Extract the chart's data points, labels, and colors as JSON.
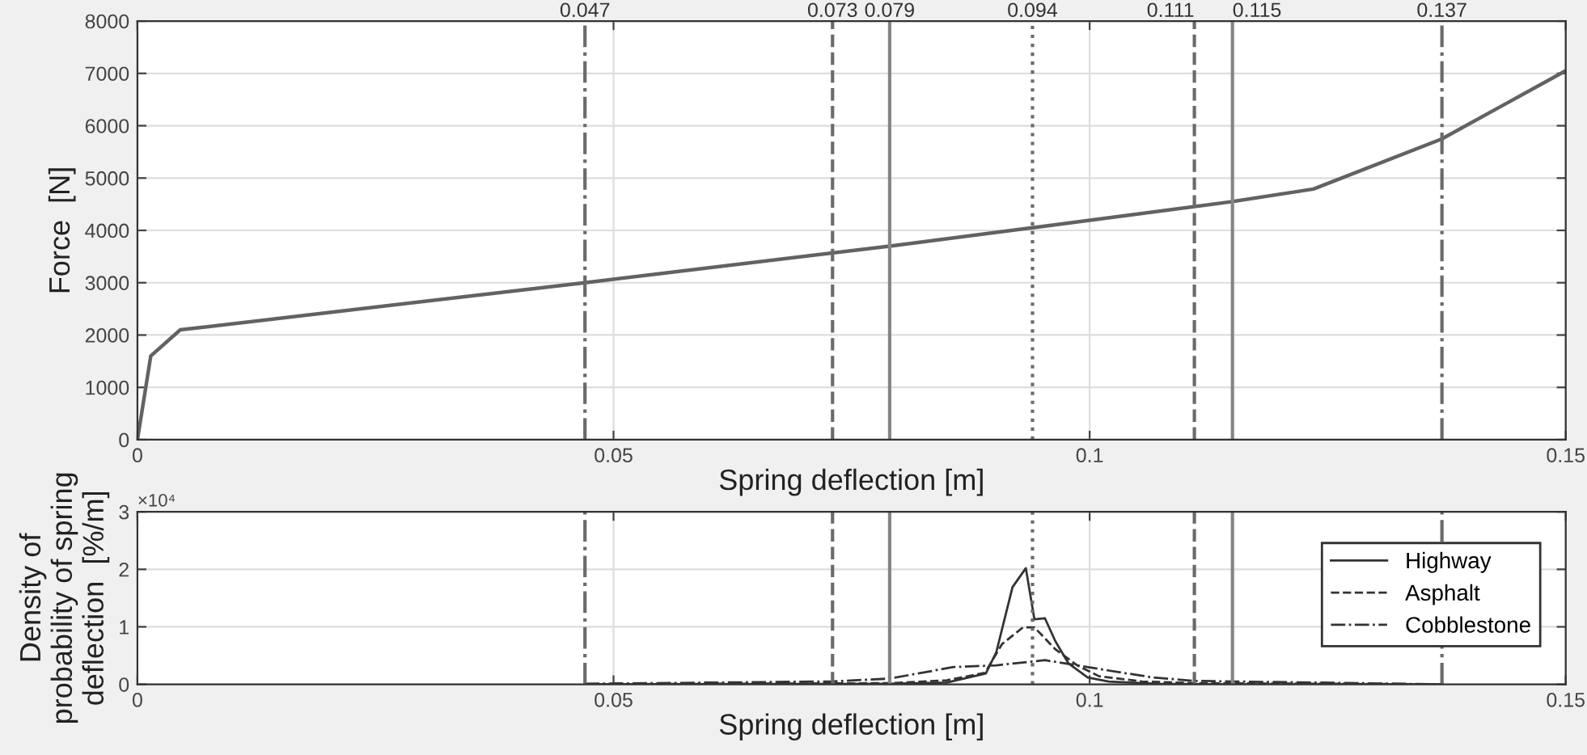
{
  "chart_data": [
    {
      "type": "line",
      "xlabel": "Spring deflection [m]",
      "ylabel": "Force  [N]",
      "x": [
        0,
        0.0014,
        0.0045,
        0.047,
        0.079,
        0.094,
        0.115,
        0.1235,
        0.137,
        0.143,
        0.15
      ],
      "series": [
        {
          "color": "#626262",
          "values": [
            0,
            1600,
            2100,
            3000,
            3700,
            4050,
            4550,
            4790,
            5750,
            6350,
            7050
          ]
        }
      ],
      "xlim": [
        0,
        0.15
      ],
      "xticks": [
        0,
        0.05,
        0.1,
        0.15
      ],
      "ylim": [
        0,
        8000
      ],
      "yticks": [
        0,
        1000,
        2000,
        3000,
        4000,
        5000,
        6000,
        7000,
        8000
      ],
      "grid": true,
      "legend": false,
      "ref_lines": [
        {
          "axis": "x",
          "value": 0.047,
          "label": "0.047",
          "color": "#6a6a6a",
          "line_style": "dashdot"
        },
        {
          "axis": "x",
          "value": 0.073,
          "label": "0.073",
          "color": "#6a6a6a",
          "line_style": "dashed"
        },
        {
          "axis": "x",
          "value": 0.079,
          "label": "0.079",
          "color": "#858585",
          "line_style": "solid"
        },
        {
          "axis": "x",
          "value": 0.094,
          "label": "0.094",
          "color": "#6a6a6a",
          "line_style": "dotted"
        },
        {
          "axis": "x",
          "value": 0.111,
          "label": "0.111",
          "color": "#6a6a6a",
          "line_style": "dashed"
        },
        {
          "axis": "x",
          "value": 0.115,
          "label": "0.115",
          "color": "#858585",
          "line_style": "solid"
        },
        {
          "axis": "x",
          "value": 0.137,
          "label": "0.137",
          "color": "#6a6a6a",
          "line_style": "dashdot"
        }
      ]
    },
    {
      "type": "line",
      "xlabel": "Spring deflection [m]",
      "ylabel": "Density of\nprobability of spring\ndeflection  [%/m]",
      "annotations": [
        "×10⁴"
      ],
      "series": [
        {
          "name": "Highway",
          "color": "#333333",
          "line_style": "solid",
          "x": [
            0.047,
            0.079,
            0.085,
            0.0891,
            0.0902,
            0.0919,
            0.0933,
            0.0942,
            0.0953,
            0.0964,
            0.0978,
            0.0998,
            0.102,
            0.107,
            0.115,
            0.137
          ],
          "values": [
            0,
            0.01,
            0.03,
            0.19,
            0.56,
            1.69,
            2.02,
            1.13,
            1.15,
            0.75,
            0.36,
            0.12,
            0.05,
            0.01,
            0,
            0
          ]
        },
        {
          "name": "Asphalt",
          "color": "#333333",
          "line_style": "dashed",
          "x": [
            0.047,
            0.079,
            0.085,
            0.089,
            0.0908,
            0.093,
            0.0942,
            0.0964,
            0.0987,
            0.101,
            0.1055,
            0.111,
            0.137
          ],
          "values": [
            0,
            0.02,
            0.07,
            0.2,
            0.7,
            0.99,
            0.99,
            0.61,
            0.33,
            0.14,
            0.05,
            0.02,
            0
          ]
        },
        {
          "name": "Cobblestone",
          "color": "#333333",
          "line_style": "dashdot",
          "x": [
            0.047,
            0.073,
            0.079,
            0.0857,
            0.0902,
            0.0953,
            0.0987,
            0.102,
            0.1066,
            0.111,
            0.115,
            0.137
          ],
          "values": [
            0.01,
            0.05,
            0.1,
            0.3,
            0.33,
            0.42,
            0.33,
            0.24,
            0.12,
            0.06,
            0.05,
            0
          ]
        }
      ],
      "xlim": [
        0,
        0.15
      ],
      "xticks": [
        0,
        0.05,
        0.1,
        0.15
      ],
      "ylim": [
        0,
        3
      ],
      "yticks": [
        0,
        1,
        2,
        3
      ],
      "grid": true,
      "legend": "right",
      "ref_lines": [
        {
          "axis": "x",
          "value": 0.047,
          "color": "#6a6a6a",
          "line_style": "dashdot"
        },
        {
          "axis": "x",
          "value": 0.073,
          "color": "#6a6a6a",
          "line_style": "dashed"
        },
        {
          "axis": "x",
          "value": 0.079,
          "color": "#858585",
          "line_style": "solid"
        },
        {
          "axis": "x",
          "value": 0.094,
          "color": "#6a6a6a",
          "line_style": "dotted"
        },
        {
          "axis": "x",
          "value": 0.111,
          "color": "#6a6a6a",
          "line_style": "dashed"
        },
        {
          "axis": "x",
          "value": 0.115,
          "color": "#858585",
          "line_style": "solid"
        },
        {
          "axis": "x",
          "value": 0.137,
          "color": "#6a6a6a",
          "line_style": "dashdot"
        }
      ]
    }
  ]
}
